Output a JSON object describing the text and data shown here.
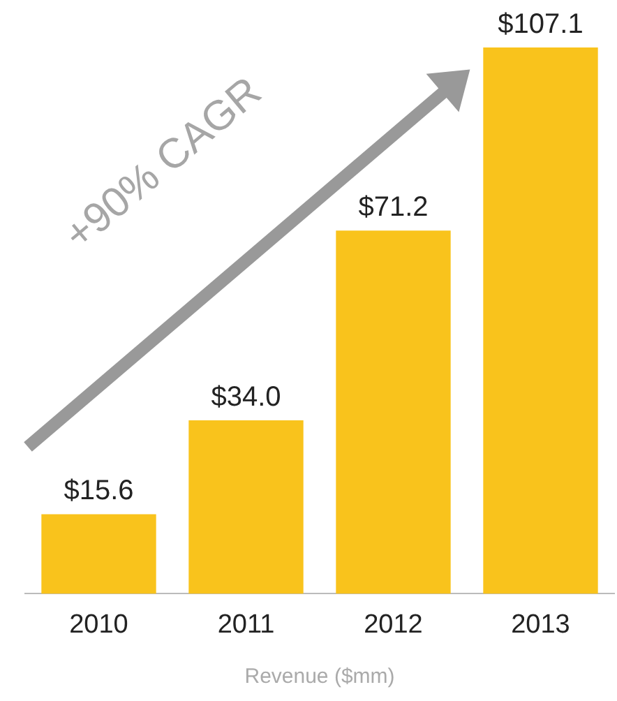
{
  "chart_data": {
    "type": "bar",
    "xlabel": "Revenue ($mm)",
    "categories": [
      "2010",
      "2011",
      "2012",
      "2013"
    ],
    "values": [
      15.6,
      34.0,
      71.2,
      107.1
    ],
    "value_labels": [
      "$15.6",
      "$34.0",
      "$71.2",
      "$107.1"
    ],
    "color": "#f9c31c",
    "annotations": [
      "+90% CAGR"
    ],
    "grid": false,
    "legend": false
  }
}
